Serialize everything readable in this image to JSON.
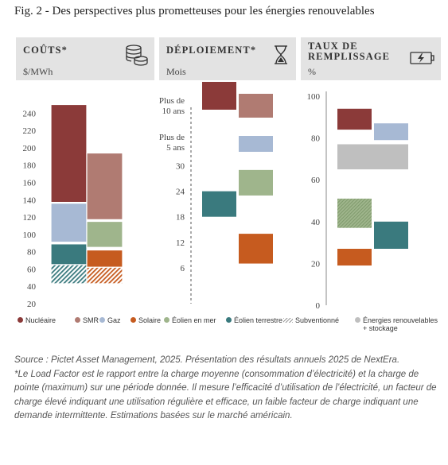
{
  "title": "Fig. 2 - Des perspectives plus prometteuses pour les énergies renouvelables",
  "panels": [
    {
      "title": "COÛTS*",
      "unit": "$/MWh",
      "icon": "coins-icon"
    },
    {
      "title": "DÉPLOIEMENT*",
      "unit": "Mois",
      "icon": "hourglass-icon"
    },
    {
      "title": "TAUX DE REMPLISSAGE",
      "unit": "%",
      "icon": "battery-charging-icon"
    }
  ],
  "colors": {
    "Nucléaire": "#8b3a39",
    "SMR": "#b07b72",
    "Gaz": "#a7b9d4",
    "Solaire": "#c65b1f",
    "Éolien en mer": "#9fb58c",
    "Éolien terrestre": "#3a7a7e",
    "Subventionné": "#888888",
    "Énergies renouvelables + stockage": "#bfbfbf"
  },
  "legend": [
    {
      "label": "Nucléaire",
      "symbol": "dot"
    },
    {
      "label": "SMR",
      "symbol": "dot"
    },
    {
      "label": "Gaz",
      "symbol": "dot"
    },
    {
      "label": "Solaire",
      "symbol": "dot"
    },
    {
      "label": "Éolien en mer",
      "symbol": "dot"
    },
    {
      "label": "Éolien terrestre",
      "symbol": "dot"
    },
    {
      "label": "Subventionné",
      "symbol": "hatch"
    },
    {
      "label": "Énergies renouvelables",
      "label2": "+ stockage",
      "symbol": "dot",
      "key": "Énergies renouvelables + stockage"
    }
  ],
  "chart_data": [
    {
      "type": "bar",
      "subtype": "floating-range",
      "title": "COÛTS*",
      "ylabel": "$/MWh",
      "ylim": [
        20,
        250
      ],
      "yticks": [
        20,
        40,
        60,
        80,
        100,
        120,
        140,
        160,
        180,
        200,
        220,
        240
      ],
      "series": [
        {
          "name": "Nucléaire",
          "col": 0,
          "range": [
            137,
            250
          ]
        },
        {
          "name": "Gaz",
          "col": 0,
          "range": [
            91,
            136
          ]
        },
        {
          "name": "Éolien terrestre",
          "col": 0,
          "range": [
            65,
            89
          ]
        },
        {
          "name": "Éolien terrestre",
          "col": 0,
          "range": [
            43,
            65
          ],
          "subsidized": true
        },
        {
          "name": "SMR",
          "col": 1,
          "range": [
            117,
            194
          ]
        },
        {
          "name": "Éolien en mer",
          "col": 1,
          "range": [
            85,
            115
          ]
        },
        {
          "name": "Solaire",
          "col": 1,
          "range": [
            62,
            82
          ]
        },
        {
          "name": "Solaire",
          "col": 1,
          "range": [
            43,
            62
          ],
          "subsidized": true
        }
      ]
    },
    {
      "type": "bar",
      "subtype": "floating-range",
      "title": "DÉPLOIEMENT*",
      "ylabel": "Mois",
      "ylim": [
        0,
        33
      ],
      "yticks": [
        6,
        12,
        18,
        24,
        30
      ],
      "category_labels": [
        "Plus de 10 ans",
        "Plus de 5 ans"
      ],
      "series": [
        {
          "name": "Nucléaire",
          "col": 0,
          "category": "Plus de 10 ans"
        },
        {
          "name": "SMR",
          "col": 1,
          "category": "Plus de 10 ans"
        },
        {
          "name": "Gaz",
          "col": 1,
          "category": "Plus de 5 ans"
        },
        {
          "name": "Éolien terrestre",
          "col": 0,
          "range": [
            18,
            24
          ]
        },
        {
          "name": "Éolien en mer",
          "col": 1,
          "range": [
            23,
            29
          ]
        },
        {
          "name": "Solaire",
          "col": 1,
          "range": [
            7,
            14
          ]
        }
      ]
    },
    {
      "type": "bar",
      "subtype": "floating-range",
      "title": "TAUX DE REMPLISSAGE",
      "ylabel": "%",
      "ylim": [
        0,
        100
      ],
      "yticks": [
        0,
        20,
        40,
        60,
        80,
        100
      ],
      "series": [
        {
          "name": "Nucléaire",
          "col": 0,
          "range": [
            84,
            94
          ]
        },
        {
          "name": "Gaz",
          "col": 1,
          "range": [
            79,
            87
          ]
        },
        {
          "name": "Énergies renouvelables + stockage",
          "col": 0.5,
          "range": [
            65,
            77
          ]
        },
        {
          "name": "Éolien en mer",
          "col": 0,
          "range": [
            37,
            51
          ],
          "subsidized": true
        },
        {
          "name": "Éolien terrestre",
          "col": 1,
          "range": [
            27,
            40
          ]
        },
        {
          "name": "Solaire",
          "col": 0,
          "range": [
            19,
            27
          ]
        }
      ]
    }
  ],
  "source": "Source : Pictet Asset Management, 2025. Présentation des résultats annuels 2025 de NextEra.",
  "footnote": "*Le Load Factor est le rapport entre la charge moyenne (consommation d’électricité) et la charge de pointe (maximum) sur une période donnée. Il mesure l’efficacité d’utilisation de l’électricité, un facteur de charge élevé indiquant une utilisation régulière et efficace, un faible facteur de charge indiquant une demande intermittente. Estimations basées sur le marché américain."
}
